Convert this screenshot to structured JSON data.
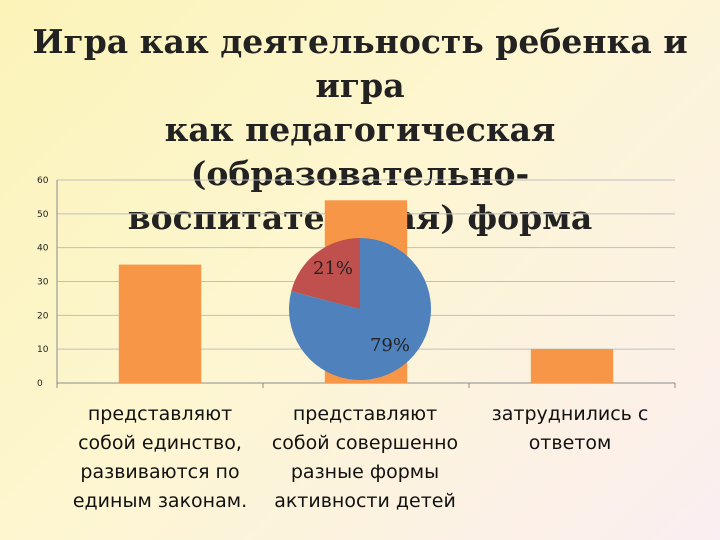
{
  "title_lines": [
    "Игра как деятельность ребенка и игра",
    "как педагогическая (образовательно-",
    "воспитательная) форма"
  ],
  "chart_data": [
    {
      "type": "bar",
      "categories": [
        "представляют собой единство, развиваются по единым законам.",
        "представляют собой совершенно разные формы активности детей",
        "затруднились с ответом"
      ],
      "category_lines": [
        [
          "представляют",
          "собой единство,",
          "развиваются по",
          "единым законам."
        ],
        [
          "представляют",
          "собой совершенно",
          "разные формы",
          "активности детей"
        ],
        [
          "затруднились с",
          "ответом"
        ]
      ],
      "values": [
        35,
        54,
        10
      ],
      "ylim": [
        0,
        60
      ],
      "yticks": [
        0,
        10,
        20,
        30,
        40,
        50,
        60
      ],
      "grid": true,
      "colors": {
        "bar": "#f79646",
        "grid": "#bfbfbf",
        "axis": "#8c8c8c"
      }
    },
    {
      "type": "pie",
      "slices": [
        {
          "label": "21%",
          "value": 21,
          "color": "#c0504d"
        },
        {
          "label": "79%",
          "value": 79,
          "color": "#4f81bd"
        }
      ]
    }
  ]
}
